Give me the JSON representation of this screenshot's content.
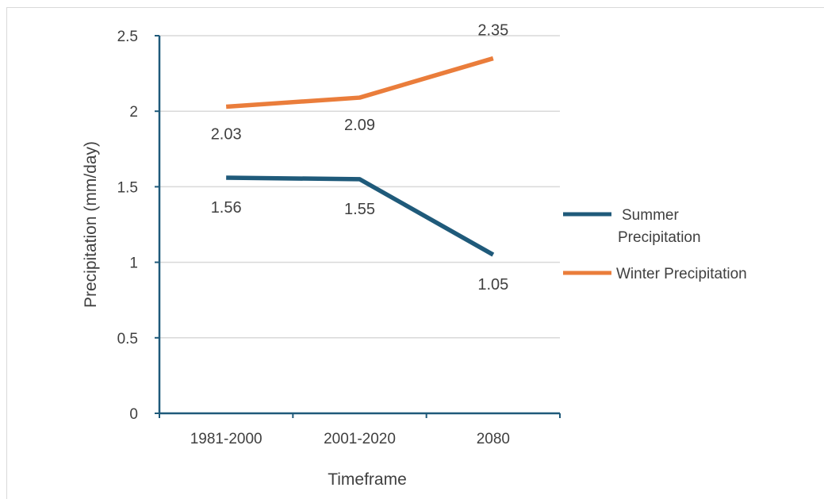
{
  "chart_data": {
    "type": "line",
    "categories": [
      "1981-2000",
      "2001-2020",
      "2080"
    ],
    "series": [
      {
        "name": "Summer Precipitation",
        "values": [
          1.56,
          1.55,
          1.05
        ],
        "color": "#1f5a7a"
      },
      {
        "name": "Winter Precipitation",
        "values": [
          2.03,
          2.09,
          2.35
        ],
        "color": "#ea7d3b"
      }
    ],
    "data_labels": [
      [
        "1.56",
        "1.55",
        "1.05"
      ],
      [
        "2.03",
        "2.09",
        "2.35"
      ]
    ],
    "xlabel": "Timeframe",
    "ylabel": "Precipitation (mm/day)",
    "ylim": [
      0,
      2.5
    ],
    "yticks": [
      "0",
      "0.5",
      "1",
      "1.5",
      "2",
      "2.5"
    ],
    "grid": true,
    "legend_position": "right",
    "legend": [
      "Summer Precipitation",
      "Winter Precipitation"
    ],
    "axis_color": "#1f5a7a",
    "grid_color": "#d9d9d9"
  }
}
